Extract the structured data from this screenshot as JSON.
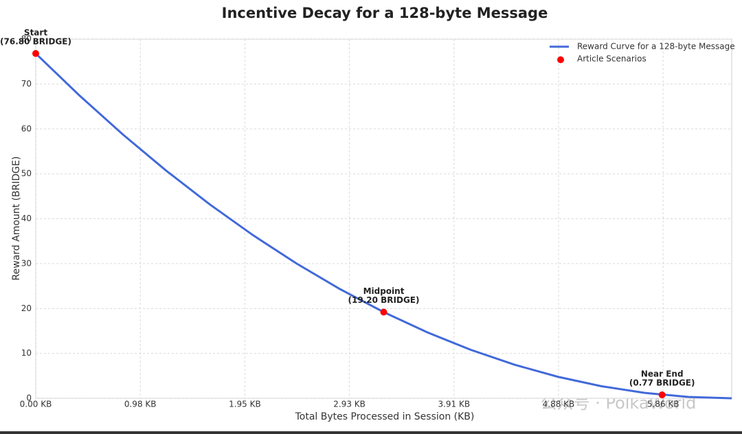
{
  "chart_data": {
    "type": "line",
    "title": "Incentive Decay for a 128-byte Message",
    "x_label": "Total Bytes Processed in Session (KB)",
    "y_label": "Reward Amount (BRIDGE)",
    "xlim": [
      0,
      6656
    ],
    "ylim": [
      0,
      80
    ],
    "xticks": [
      {
        "value": 0,
        "label": "0.00 KB"
      },
      {
        "value": 1000,
        "label": "0.98 KB"
      },
      {
        "value": 2000,
        "label": "1.95 KB"
      },
      {
        "value": 3000,
        "label": "2.93 KB"
      },
      {
        "value": 4000,
        "label": "3.91 KB"
      },
      {
        "value": 5000,
        "label": "4.88 KB"
      },
      {
        "value": 6000,
        "label": "5.86 KB"
      }
    ],
    "yticks": [
      0,
      10,
      20,
      30,
      40,
      50,
      60,
      70,
      80
    ],
    "grid": true,
    "legend": "upper right",
    "series": [
      {
        "name": "Reward Curve for a 128-byte Message",
        "type": "line",
        "color": "#4169d9",
        "x": [
          0,
          416,
          832,
          1248,
          1664,
          2080,
          2496,
          2912,
          3328,
          3744,
          4160,
          4576,
          4992,
          5408,
          5824,
          6240,
          6656
        ],
        "y": [
          76.8,
          67.5,
          58.8,
          50.7,
          43.2,
          36.3,
          30.0,
          24.3,
          19.2,
          14.7,
          10.8,
          7.5,
          4.8,
          2.7,
          1.2,
          0.3,
          0
        ]
      },
      {
        "name": "Article Scenarios",
        "type": "scatter",
        "color": "#ff0000",
        "x": [
          0,
          3328,
          5990.4
        ],
        "y": [
          76.8,
          19.2,
          0.768
        ],
        "annotations": [
          "Start",
          "Midpoint",
          "Near End"
        ],
        "value_labels": [
          "(76.80 BRIDGE)",
          "(19.20 BRIDGE)",
          "(0.77 BRIDGE)"
        ]
      }
    ],
    "watermark": "公众号 · PolkaWorld"
  }
}
